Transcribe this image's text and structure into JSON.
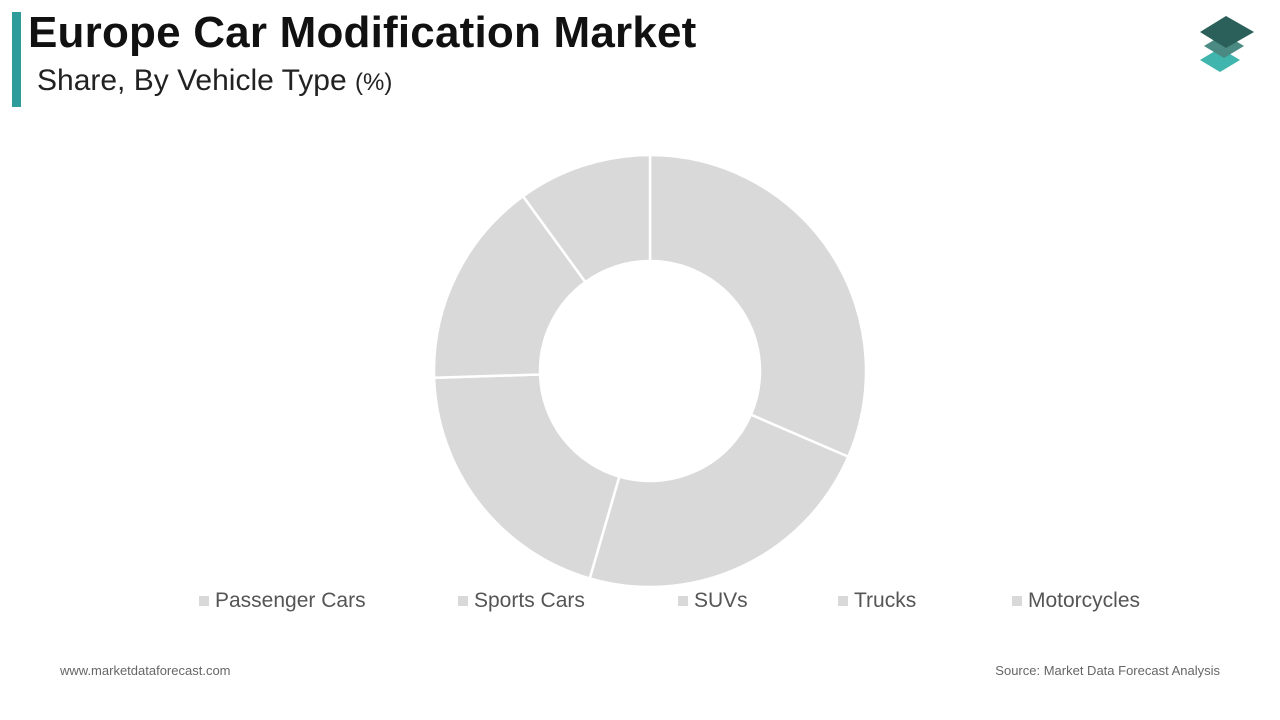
{
  "header": {
    "title": "Europe Car Modification Market",
    "subtitle": "Share, By Vehicle Type",
    "unit": "(%)",
    "accent_color": "#2e9c9a"
  },
  "logo": {
    "icon": "stacked-layers-icon",
    "colors": [
      "#2a5f5a",
      "#4a8a83",
      "#3fb5ad"
    ]
  },
  "chart_data": {
    "type": "pie",
    "variant": "donut",
    "categories": [
      "Passenger Cars",
      "Sports Cars",
      "SUVs",
      "Trucks",
      "Motorcycles"
    ],
    "values": [
      31.5,
      23.0,
      20.0,
      15.5,
      10.0
    ],
    "slice_color": "#d9d9d9",
    "separator_color": "#ffffff",
    "start_angle": "12 o'clock",
    "direction": "clockwise",
    "legend_position": "bottom",
    "legend_swatch_color": "#d9d9d9"
  },
  "footer": {
    "website": "www.marketdataforecast.com",
    "source": "Source: Market Data Forecast Analysis"
  }
}
